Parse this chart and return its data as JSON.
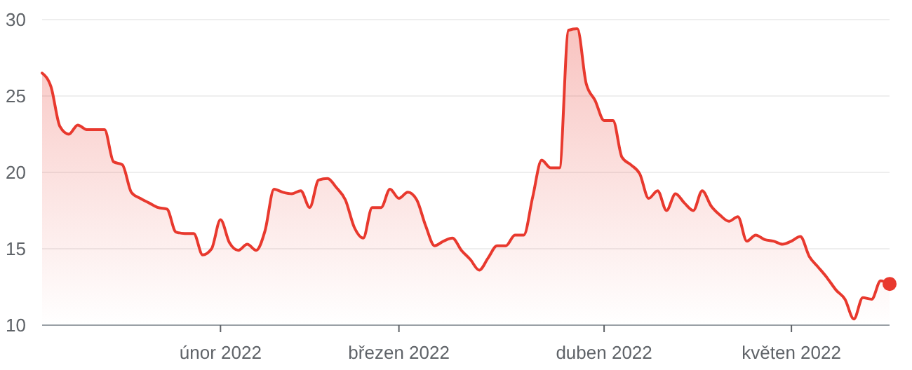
{
  "chart_data": {
    "type": "area",
    "ylim": [
      10,
      30
    ],
    "yticks": [
      10,
      15,
      20,
      25,
      30
    ],
    "categories": [
      null,
      null,
      null,
      null,
      null,
      null,
      null,
      null,
      null,
      null,
      null,
      null,
      null,
      null,
      null,
      null,
      null,
      null,
      null,
      null,
      "únor 2022",
      null,
      null,
      null,
      null,
      null,
      null,
      null,
      null,
      null,
      null,
      null,
      null,
      null,
      null,
      null,
      null,
      null,
      null,
      null,
      "březen 2022",
      null,
      null,
      null,
      null,
      null,
      null,
      null,
      null,
      null,
      null,
      null,
      null,
      null,
      null,
      null,
      null,
      null,
      null,
      null,
      null,
      null,
      null,
      "duben 2022",
      null,
      null,
      null,
      null,
      null,
      null,
      null,
      null,
      null,
      null,
      null,
      null,
      null,
      null,
      null,
      null,
      null,
      null,
      null,
      null,
      "květen 2022",
      null,
      null,
      null,
      null,
      null,
      null,
      null,
      null,
      null,
      null,
      null
    ],
    "grid": "y",
    "series": [
      {
        "color": "#e8392e",
        "values": [
          26.5,
          25.6,
          23,
          22.5,
          23.1,
          22.8,
          22.8,
          22.8,
          20.7,
          20.5,
          18.7,
          18.3,
          18,
          17.7,
          17.6,
          16.1,
          16,
          16,
          14.6,
          15,
          16.9,
          15.4,
          14.9,
          15.3,
          14.9,
          16.2,
          18.9,
          18.7,
          18.6,
          18.8,
          17.7,
          19.5,
          19.6,
          19,
          18.2,
          16.4,
          15.7,
          17.7,
          17.7,
          18.9,
          18.3,
          18.7,
          18.2,
          16.5,
          15.2,
          15.5,
          15.7,
          14.9,
          14.3,
          13.6,
          14.4,
          15.2,
          15.2,
          15.9,
          15.9,
          18.4,
          20.8,
          20.3,
          20.3,
          29.3,
          29.4,
          25.8,
          24.7,
          23.4,
          23.4,
          21,
          20.5,
          19.9,
          18.3,
          18.8,
          17.5,
          18.6,
          18,
          17.5,
          18.8,
          17.8,
          17.2,
          16.8,
          17.1,
          15.5,
          15.9,
          15.6,
          15.5,
          15.3,
          15.5,
          15.8,
          14.5,
          13.8,
          13.1,
          12.3,
          11.7,
          10.4,
          11.8,
          11.7,
          12.9,
          12.7
        ]
      },
      {
        "type": "scatter",
        "color": "#e8392e",
        "values": [
          null,
          null,
          null,
          null,
          null,
          null,
          null,
          null,
          null,
          null,
          null,
          null,
          null,
          null,
          null,
          null,
          null,
          null,
          null,
          null,
          null,
          null,
          null,
          null,
          null,
          null,
          null,
          null,
          null,
          null,
          null,
          null,
          null,
          null,
          null,
          null,
          null,
          null,
          null,
          null,
          null,
          null,
          null,
          null,
          null,
          null,
          null,
          null,
          null,
          null,
          null,
          null,
          null,
          null,
          null,
          null,
          null,
          null,
          null,
          null,
          null,
          null,
          null,
          null,
          null,
          null,
          null,
          null,
          null,
          null,
          null,
          null,
          null,
          null,
          null,
          null,
          null,
          null,
          null,
          null,
          null,
          null,
          null,
          null,
          null,
          null,
          null,
          null,
          null,
          null,
          null,
          null,
          null,
          null,
          null,
          12.7
        ]
      }
    ]
  }
}
